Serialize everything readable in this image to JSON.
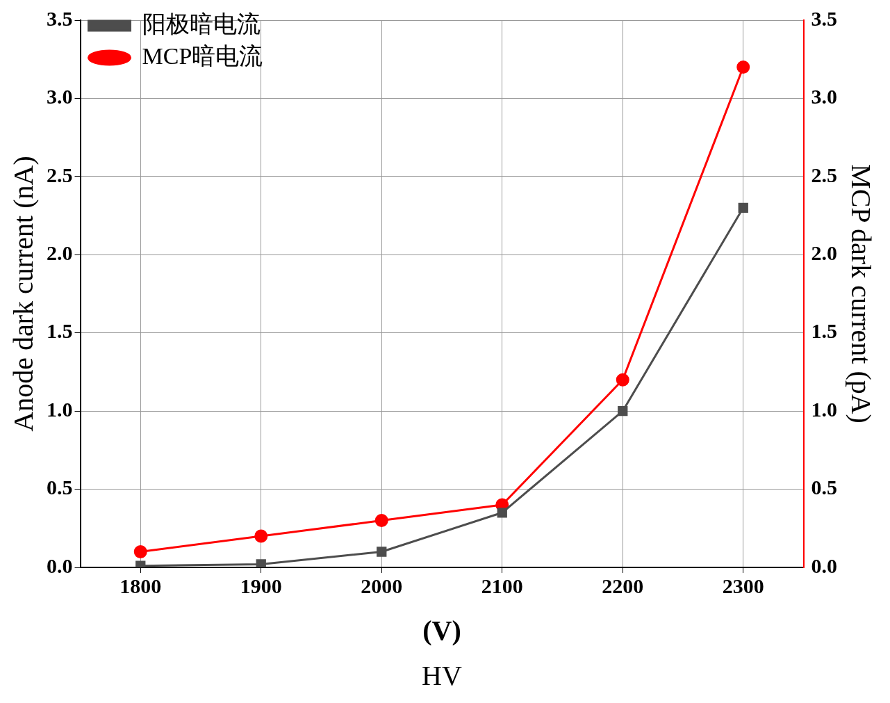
{
  "chart_data": {
    "type": "line",
    "xlabel": "(V)",
    "ylabel": "Anode dark current (nA)",
    "y2label": "MCP dark current (pA)",
    "annotations": [
      "HV"
    ],
    "x": [
      1800,
      1900,
      2000,
      2100,
      2200,
      2300
    ],
    "series": [
      {
        "name": "阳极暗电流",
        "color": "#4d4d4d",
        "marker": "square",
        "values": [
          0.01,
          0.02,
          0.1,
          0.35,
          1.0,
          2.3
        ]
      },
      {
        "name": "MCP暗电流",
        "color": "#ff0000",
        "marker": "circle",
        "axis": "y2",
        "values": [
          0.1,
          0.2,
          0.3,
          0.4,
          1.2,
          3.2
        ]
      }
    ],
    "xlim": [
      1750,
      2350
    ],
    "xticks": [
      1800,
      1900,
      2000,
      2100,
      2200,
      2300
    ],
    "ylim": [
      0,
      3.5
    ],
    "yticks": [
      {
        "value": 0,
        "label": "0.0"
      },
      0.5,
      {
        "value": 1,
        "label": "1.0"
      },
      1.5,
      {
        "value": 2,
        "label": "2.0"
      },
      2.5,
      {
        "value": 3,
        "label": "3.0"
      },
      3.5
    ],
    "y2lim": [
      0,
      3.5
    ],
    "y2ticks": [
      {
        "value": 0,
        "label": "0.0"
      },
      0.5,
      {
        "value": 1,
        "label": "1.0"
      },
      1.5,
      {
        "value": 2,
        "label": "2.0"
      },
      2.5,
      {
        "value": 3,
        "label": "3.0"
      },
      3.5
    ],
    "grid": true,
    "legend": "top left"
  }
}
